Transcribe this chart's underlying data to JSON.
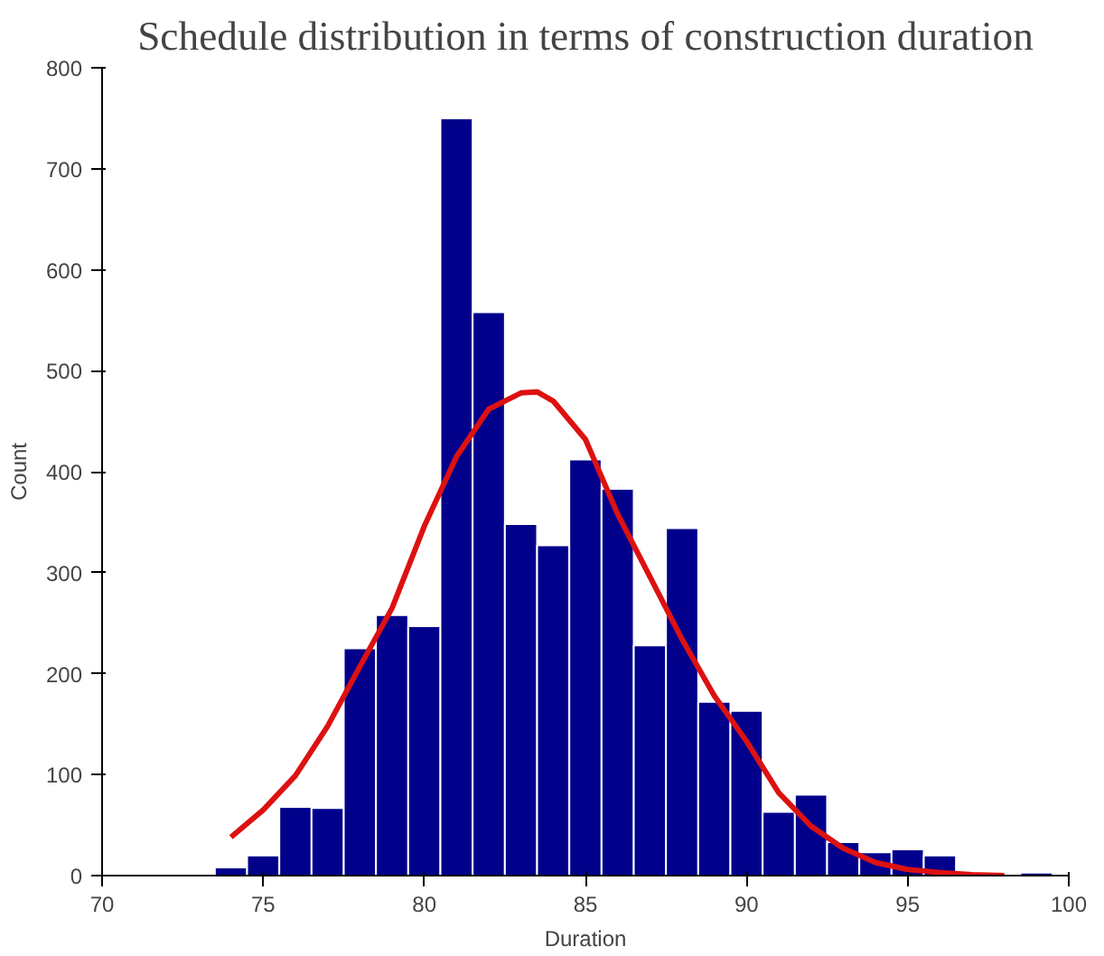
{
  "chart_data": {
    "type": "histogram",
    "title": "Schedule distribution in terms of construction duration",
    "xlabel": "Duration",
    "ylabel": "Count",
    "bins": [
      73.5,
      74.5,
      75.5,
      76.5,
      77.5,
      78.5,
      79.5,
      80.5,
      81.5,
      82.5,
      83.5,
      84.5,
      85.5,
      86.5,
      87.5,
      88.5,
      89.5,
      90.5,
      91.5,
      92.5,
      93.5,
      94.5,
      95.5,
      96.5,
      97.5,
      98.5,
      99.5
    ],
    "values": [
      8,
      20,
      68,
      67,
      225,
      258,
      247,
      750,
      558,
      348,
      327,
      412,
      383,
      228,
      344,
      172,
      163,
      63,
      80,
      33,
      23,
      26,
      20,
      2,
      1,
      3
    ],
    "color": "#00008b",
    "series": [
      {
        "type": "line",
        "color": "#dd1111",
        "line_style": "solid",
        "x": [
          74,
          75,
          76,
          77,
          78,
          79,
          80,
          81,
          82,
          83,
          83.5,
          84,
          85,
          86,
          87,
          88,
          89,
          90,
          91,
          92,
          93,
          94,
          95,
          96,
          97,
          98
        ],
        "values": [
          38,
          65,
          99,
          148,
          207,
          265,
          346,
          415,
          462,
          478,
          479,
          470,
          432,
          358,
          296,
          234,
          178,
          133,
          82,
          49,
          27,
          13,
          6,
          3,
          1,
          0
        ]
      }
    ],
    "xlim": [
      70,
      100
    ],
    "ylim": [
      0,
      800
    ],
    "xticks": [
      70,
      75,
      80,
      85,
      90,
      95,
      100
    ],
    "yticks": [
      0,
      100,
      200,
      300,
      400,
      500,
      600,
      700,
      800
    ],
    "grid": false
  }
}
